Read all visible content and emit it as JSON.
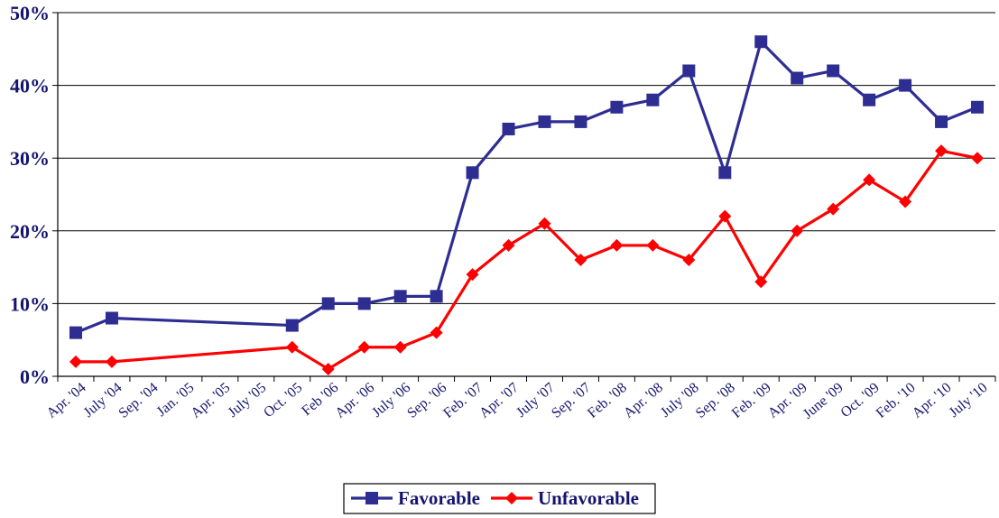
{
  "chart_data": {
    "type": "line",
    "categories": [
      "Apr. '04",
      "July '04",
      "Sep. '04",
      "Jan. '05",
      "Apr. '05",
      "July '05",
      "Oct. '05",
      "Feb '06",
      "Apr. '06",
      "July '06",
      "Sep. '06",
      "Feb. '07",
      "Apr. '07",
      "July '07",
      "Sep. '07",
      "Feb. '08",
      "Apr. '08",
      "July '08",
      "Sep. '08",
      "Feb. '09",
      "Apr. '09",
      "June '09",
      "Oct. '09",
      "Feb. '10",
      "Apr. '10",
      "July '10"
    ],
    "series": [
      {
        "name": "Favorable",
        "color": "#2e2e92",
        "marker": "square",
        "values": [
          6,
          8,
          null,
          null,
          null,
          null,
          7,
          10,
          10,
          11,
          11,
          28,
          34,
          35,
          35,
          37,
          38,
          42,
          28,
          46,
          41,
          42,
          38,
          40,
          35,
          37
        ]
      },
      {
        "name": "Unfavorable",
        "color": "#ff0000",
        "marker": "diamond",
        "values": [
          2,
          2,
          null,
          null,
          null,
          null,
          4,
          1,
          4,
          4,
          6,
          14,
          18,
          21,
          16,
          18,
          18,
          16,
          22,
          13,
          20,
          23,
          27,
          24,
          31,
          30
        ]
      }
    ],
    "yticks": [
      "0%",
      "10%",
      "20%",
      "30%",
      "40%",
      "50%"
    ],
    "ylim": [
      0,
      50
    ],
    "grid": "horizontal",
    "legend": "bottom-center",
    "title": "",
    "xlabel": "",
    "ylabel": ""
  }
}
